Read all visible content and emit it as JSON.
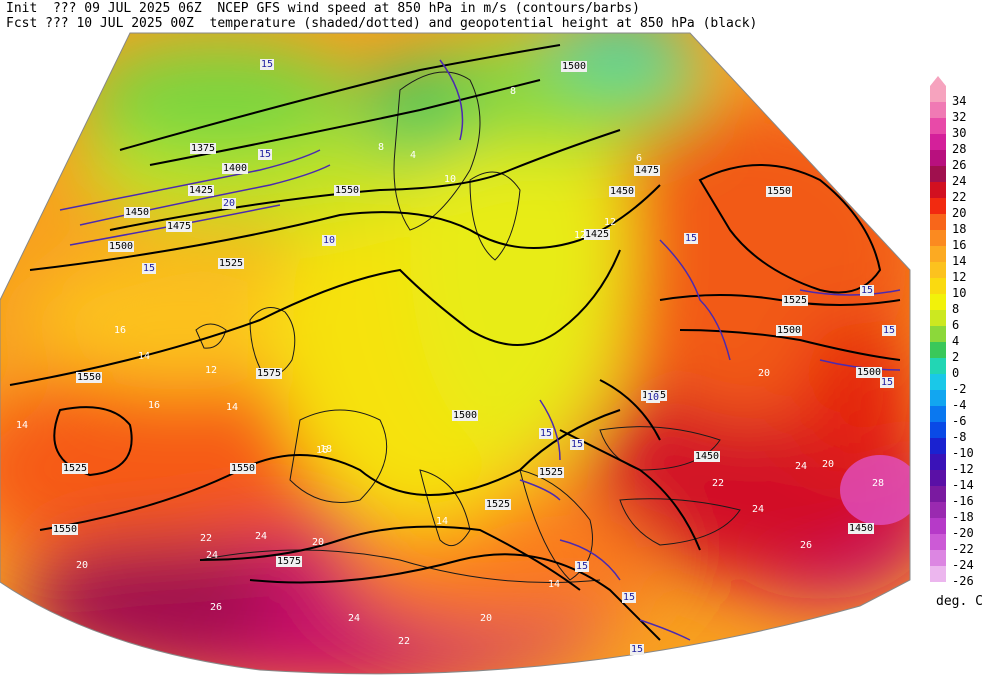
{
  "header": {
    "line1": "Init  ??? 09 JUL 2025 06Z  NCEP GFS wind speed at 850 hPa in m/s (contours/barbs)",
    "line2": "Fcst ??? 10 JUL 2025 00Z  temperature (shaded/dotted) and geopotential height at 850 hPa (black)"
  },
  "legend": {
    "unit": "deg. C",
    "entries": [
      {
        "label": "34",
        "color": "#f6a3be"
      },
      {
        "label": "32",
        "color": "#f07ab4"
      },
      {
        "label": "30",
        "color": "#e84aa8"
      },
      {
        "label": "28",
        "color": "#d4209a"
      },
      {
        "label": "26",
        "color": "#b8107e"
      },
      {
        "label": "24",
        "color": "#a0104e"
      },
      {
        "label": "22",
        "color": "#d21020"
      },
      {
        "label": "20",
        "color": "#f22a10"
      },
      {
        "label": "18",
        "color": "#f8661a"
      },
      {
        "label": "16",
        "color": "#fb8a20"
      },
      {
        "label": "14",
        "color": "#fcaa22"
      },
      {
        "label": "12",
        "color": "#fcc21e"
      },
      {
        "label": "10",
        "color": "#fada10"
      },
      {
        "label": "8",
        "color": "#f2f20a"
      },
      {
        "label": "6",
        "color": "#cce820"
      },
      {
        "label": "4",
        "color": "#8cd83a"
      },
      {
        "label": "2",
        "color": "#3ac85a"
      },
      {
        "label": "0",
        "color": "#22d6b4"
      },
      {
        "label": "-2",
        "color": "#1ac8e8"
      },
      {
        "label": "-4",
        "color": "#12a6f0"
      },
      {
        "label": "-6",
        "color": "#0a78f0"
      },
      {
        "label": "-8",
        "color": "#0a4ae6"
      },
      {
        "label": "-10",
        "color": "#1a22d0"
      },
      {
        "label": "-12",
        "color": "#3a12b8"
      },
      {
        "label": "-14",
        "color": "#5a10a6"
      },
      {
        "label": "-16",
        "color": "#7a1aa0"
      },
      {
        "label": "-18",
        "color": "#9a2ab0"
      },
      {
        "label": "-20",
        "color": "#b63ac8"
      },
      {
        "label": "-22",
        "color": "#cc5ad6"
      },
      {
        "label": "-24",
        "color": "#dc86e2"
      },
      {
        "label": "-26",
        "color": "#ecb6ee"
      }
    ]
  },
  "height_labels": [
    "1500",
    "1375",
    "1400",
    "1425",
    "1450",
    "1475",
    "1500",
    "1525",
    "1550",
    "1550",
    "1525",
    "1550",
    "1575",
    "1550",
    "1525",
    "1575",
    "1500",
    "1525",
    "1475",
    "1450",
    "1425",
    "1425",
    "1450",
    "1550",
    "1525",
    "1500",
    "1500",
    "1450"
  ],
  "temp_labels": [
    "16",
    "14",
    "12",
    "14",
    "16",
    "14",
    "20",
    "22",
    "24",
    "26",
    "24",
    "20",
    "24",
    "22",
    "20",
    "18",
    "14",
    "12",
    "10",
    "8",
    "12",
    "8",
    "6",
    "4",
    "20",
    "24",
    "26",
    "24",
    "28",
    "22",
    "20",
    "16",
    "14"
  ],
  "wind_labels": [
    "15",
    "15",
    "20",
    "15",
    "10",
    "15",
    "15",
    "15",
    "15",
    "15",
    "15",
    "15",
    "15",
    "10",
    "15"
  ]
}
